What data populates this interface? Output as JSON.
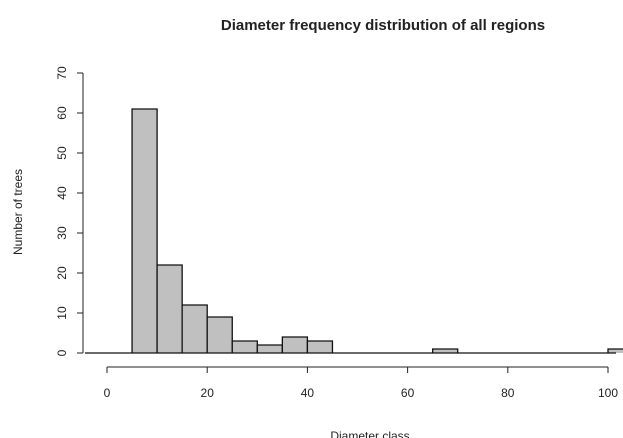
{
  "chart_data": {
    "type": "bar",
    "title": "Diameter frequency distribution of all regions",
    "xlabel": "Diameter class",
    "ylabel": "Number of trees",
    "xlim": [
      0,
      100
    ],
    "ylim": [
      0,
      70
    ],
    "x_ticks": [
      0,
      20,
      40,
      60,
      80,
      100
    ],
    "y_ticks": [
      0,
      10,
      20,
      30,
      40,
      50,
      60,
      70
    ],
    "bins": [
      {
        "start": 5,
        "end": 10,
        "count": 61
      },
      {
        "start": 10,
        "end": 15,
        "count": 22
      },
      {
        "start": 15,
        "end": 20,
        "count": 12
      },
      {
        "start": 20,
        "end": 25,
        "count": 9
      },
      {
        "start": 25,
        "end": 30,
        "count": 3
      },
      {
        "start": 30,
        "end": 35,
        "count": 2
      },
      {
        "start": 35,
        "end": 40,
        "count": 4
      },
      {
        "start": 40,
        "end": 45,
        "count": 3
      },
      {
        "start": 65,
        "end": 70,
        "count": 1
      },
      {
        "start": 100,
        "end": 105,
        "count": 1
      }
    ],
    "bar_color": "#c0c0c0",
    "edge_color": "#111111",
    "grid": false
  }
}
